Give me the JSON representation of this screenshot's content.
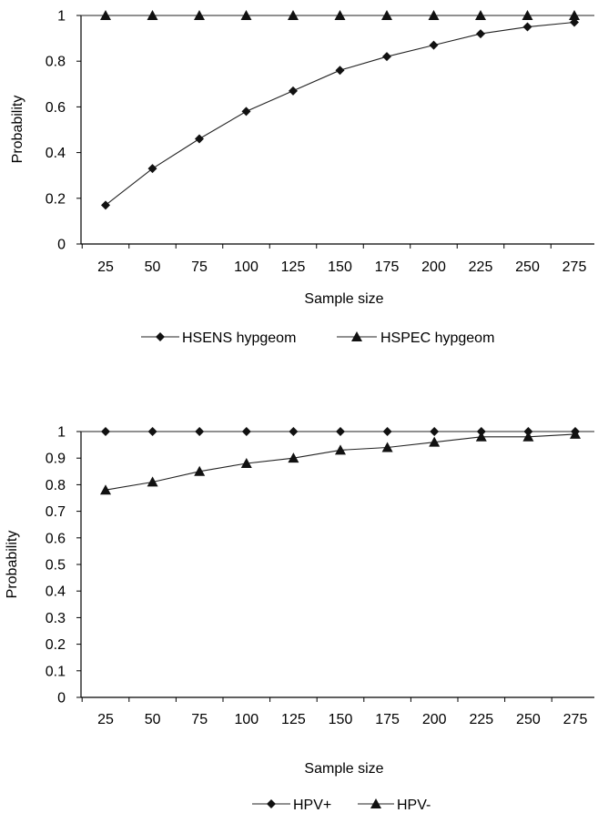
{
  "chart_data": [
    {
      "type": "line",
      "xlabel": "Sample size",
      "ylabel": "Probability",
      "categories": [
        "25",
        "50",
        "75",
        "100",
        "125",
        "150",
        "175",
        "200",
        "225",
        "250",
        "275"
      ],
      "ylim": [
        0,
        1
      ],
      "yticks": [
        "0",
        "0.2",
        "0.4",
        "0.6",
        "0.8",
        "1"
      ],
      "grid": false,
      "legend_position": "bottom",
      "series": [
        {
          "name": "HSENS hypgeom",
          "marker": "diamond",
          "values": [
            0.17,
            0.33,
            0.46,
            0.58,
            0.67,
            0.76,
            0.82,
            0.87,
            0.92,
            0.95,
            0.97
          ]
        },
        {
          "name": "HSPEC hypgeom",
          "marker": "triangle",
          "values": [
            1,
            1,
            1,
            1,
            1,
            1,
            1,
            1,
            1,
            1,
            1
          ]
        }
      ]
    },
    {
      "type": "line",
      "xlabel": "Sample size",
      "ylabel": "Probability",
      "categories": [
        "25",
        "50",
        "75",
        "100",
        "125",
        "150",
        "175",
        "200",
        "225",
        "250",
        "275"
      ],
      "ylim": [
        0,
        1
      ],
      "yticks": [
        "0",
        "0.1",
        "0.2",
        "0.3",
        "0.4",
        "0.5",
        "0.6",
        "0.7",
        "0.8",
        "0.9",
        "1"
      ],
      "grid": false,
      "legend_position": "bottom",
      "series": [
        {
          "name": "HPV+",
          "marker": "diamond",
          "values": [
            1,
            1,
            1,
            1,
            1,
            1,
            1,
            1,
            1,
            1,
            1
          ]
        },
        {
          "name": "HPV-",
          "marker": "triangle",
          "values": [
            0.78,
            0.81,
            0.85,
            0.88,
            0.9,
            0.93,
            0.94,
            0.96,
            0.98,
            0.98,
            0.99
          ]
        }
      ]
    }
  ]
}
